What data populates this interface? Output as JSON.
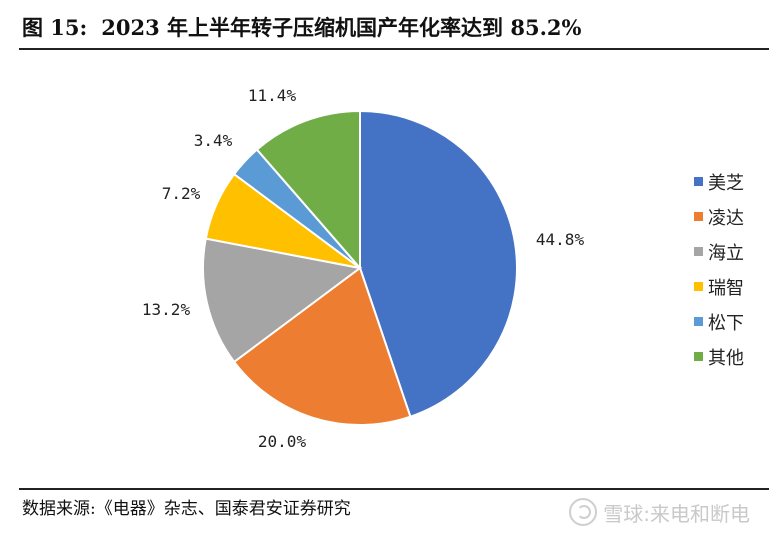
{
  "title": {
    "number": "图 15:",
    "text": "2023 年上半年转子压缩机国产年化率达到 85.2%"
  },
  "chart_data": {
    "type": "pie",
    "categories": [
      "美芝",
      "凌达",
      "海立",
      "瑞智",
      "松下",
      "其他"
    ],
    "values": [
      44.8,
      20.0,
      13.2,
      7.2,
      3.4,
      11.4
    ],
    "labels": [
      "44.8%",
      "20.0%",
      "13.2%",
      "7.2%",
      "3.4%",
      "11.4%"
    ],
    "colors": [
      "#4472C4",
      "#ED7D31",
      "#A5A5A5",
      "#FFC000",
      "#5B9BD5",
      "#70AD47"
    ],
    "legend_position": "right",
    "start_angle_deg": 0,
    "direction": "clockwise"
  },
  "source": "数据来源:《电器》杂志、国泰君安证券研究",
  "watermark": "雪球:来电和断电"
}
